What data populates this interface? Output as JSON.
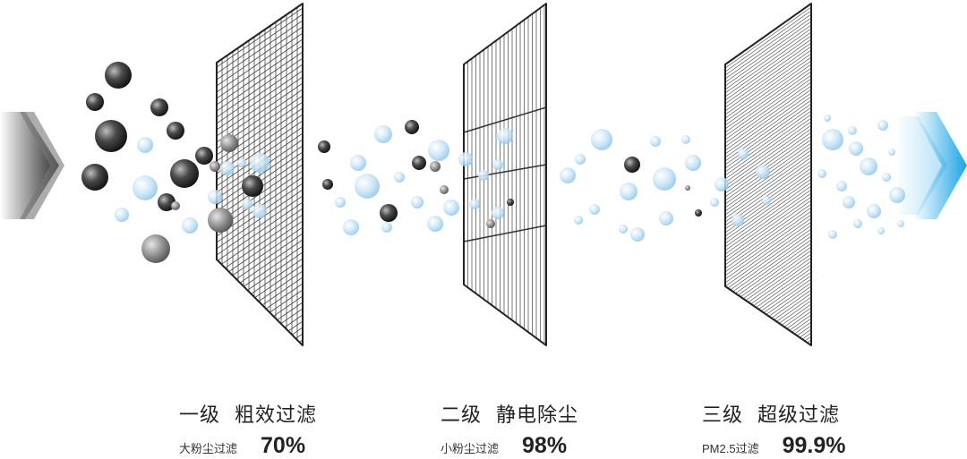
{
  "stages": [
    {
      "level": "一级",
      "name": "粗效过滤",
      "desc": "大粉尘过滤",
      "pct": "70%"
    },
    {
      "level": "二级",
      "name": "静电除尘",
      "desc": "小粉尘过滤",
      "pct": "98%"
    },
    {
      "level": "三级",
      "name": "超级过滤",
      "desc": "PM2.5过滤",
      "pct": "99.9%"
    }
  ],
  "colors": {
    "arrow_in": "#3a3a3a",
    "arrow_out": "#1aa7e8",
    "dark_particle": "#222222",
    "light_particle": "#b8dcf4",
    "filter_line": "#333333"
  }
}
